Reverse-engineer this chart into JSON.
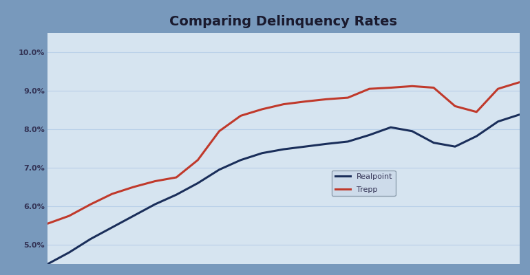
{
  "title": "Comparing Delinquency Rates",
  "title_fontsize": 14,
  "title_color": "#1a1a2e",
  "outer_bg_color": "#7899bc",
  "plot_bg_color": "#d6e4f0",
  "ylim": [
    4.5,
    10.5
  ],
  "yticks": [
    5.0,
    6.0,
    7.0,
    8.0,
    9.0,
    10.0
  ],
  "ytick_labels": [
    "5.0%",
    "6.0%",
    "7.0%",
    "8.0%",
    "9.0%",
    "10.0%"
  ],
  "x_realpoint": [
    0,
    1,
    2,
    3,
    4,
    5,
    6,
    7,
    8,
    9,
    10,
    11,
    12,
    13,
    14,
    15,
    16,
    17,
    18,
    19,
    20,
    21,
    22
  ],
  "y_realpoint": [
    4.5,
    4.8,
    5.15,
    5.45,
    5.75,
    6.05,
    6.3,
    6.6,
    6.95,
    7.2,
    7.38,
    7.48,
    7.55,
    7.62,
    7.68,
    7.85,
    8.05,
    7.95,
    7.65,
    7.55,
    7.82,
    8.2,
    8.38
  ],
  "y_trepp": [
    5.55,
    5.75,
    6.05,
    6.32,
    6.5,
    6.65,
    6.75,
    7.2,
    7.95,
    8.35,
    8.52,
    8.65,
    8.72,
    8.78,
    8.82,
    9.05,
    9.08,
    9.12,
    9.08,
    8.6,
    8.45,
    9.05,
    9.22
  ],
  "line_realpoint_color": "#1a2e5a",
  "line_trepp_color": "#c0392b",
  "line_width": 2.2,
  "legend_labels": [
    "Realpoint",
    "Trepp"
  ],
  "legend_fontsize": 8,
  "grid_color": "#b8cfe8",
  "grid_linewidth": 0.8,
  "tick_fontsize": 8,
  "tick_color": "#333355"
}
